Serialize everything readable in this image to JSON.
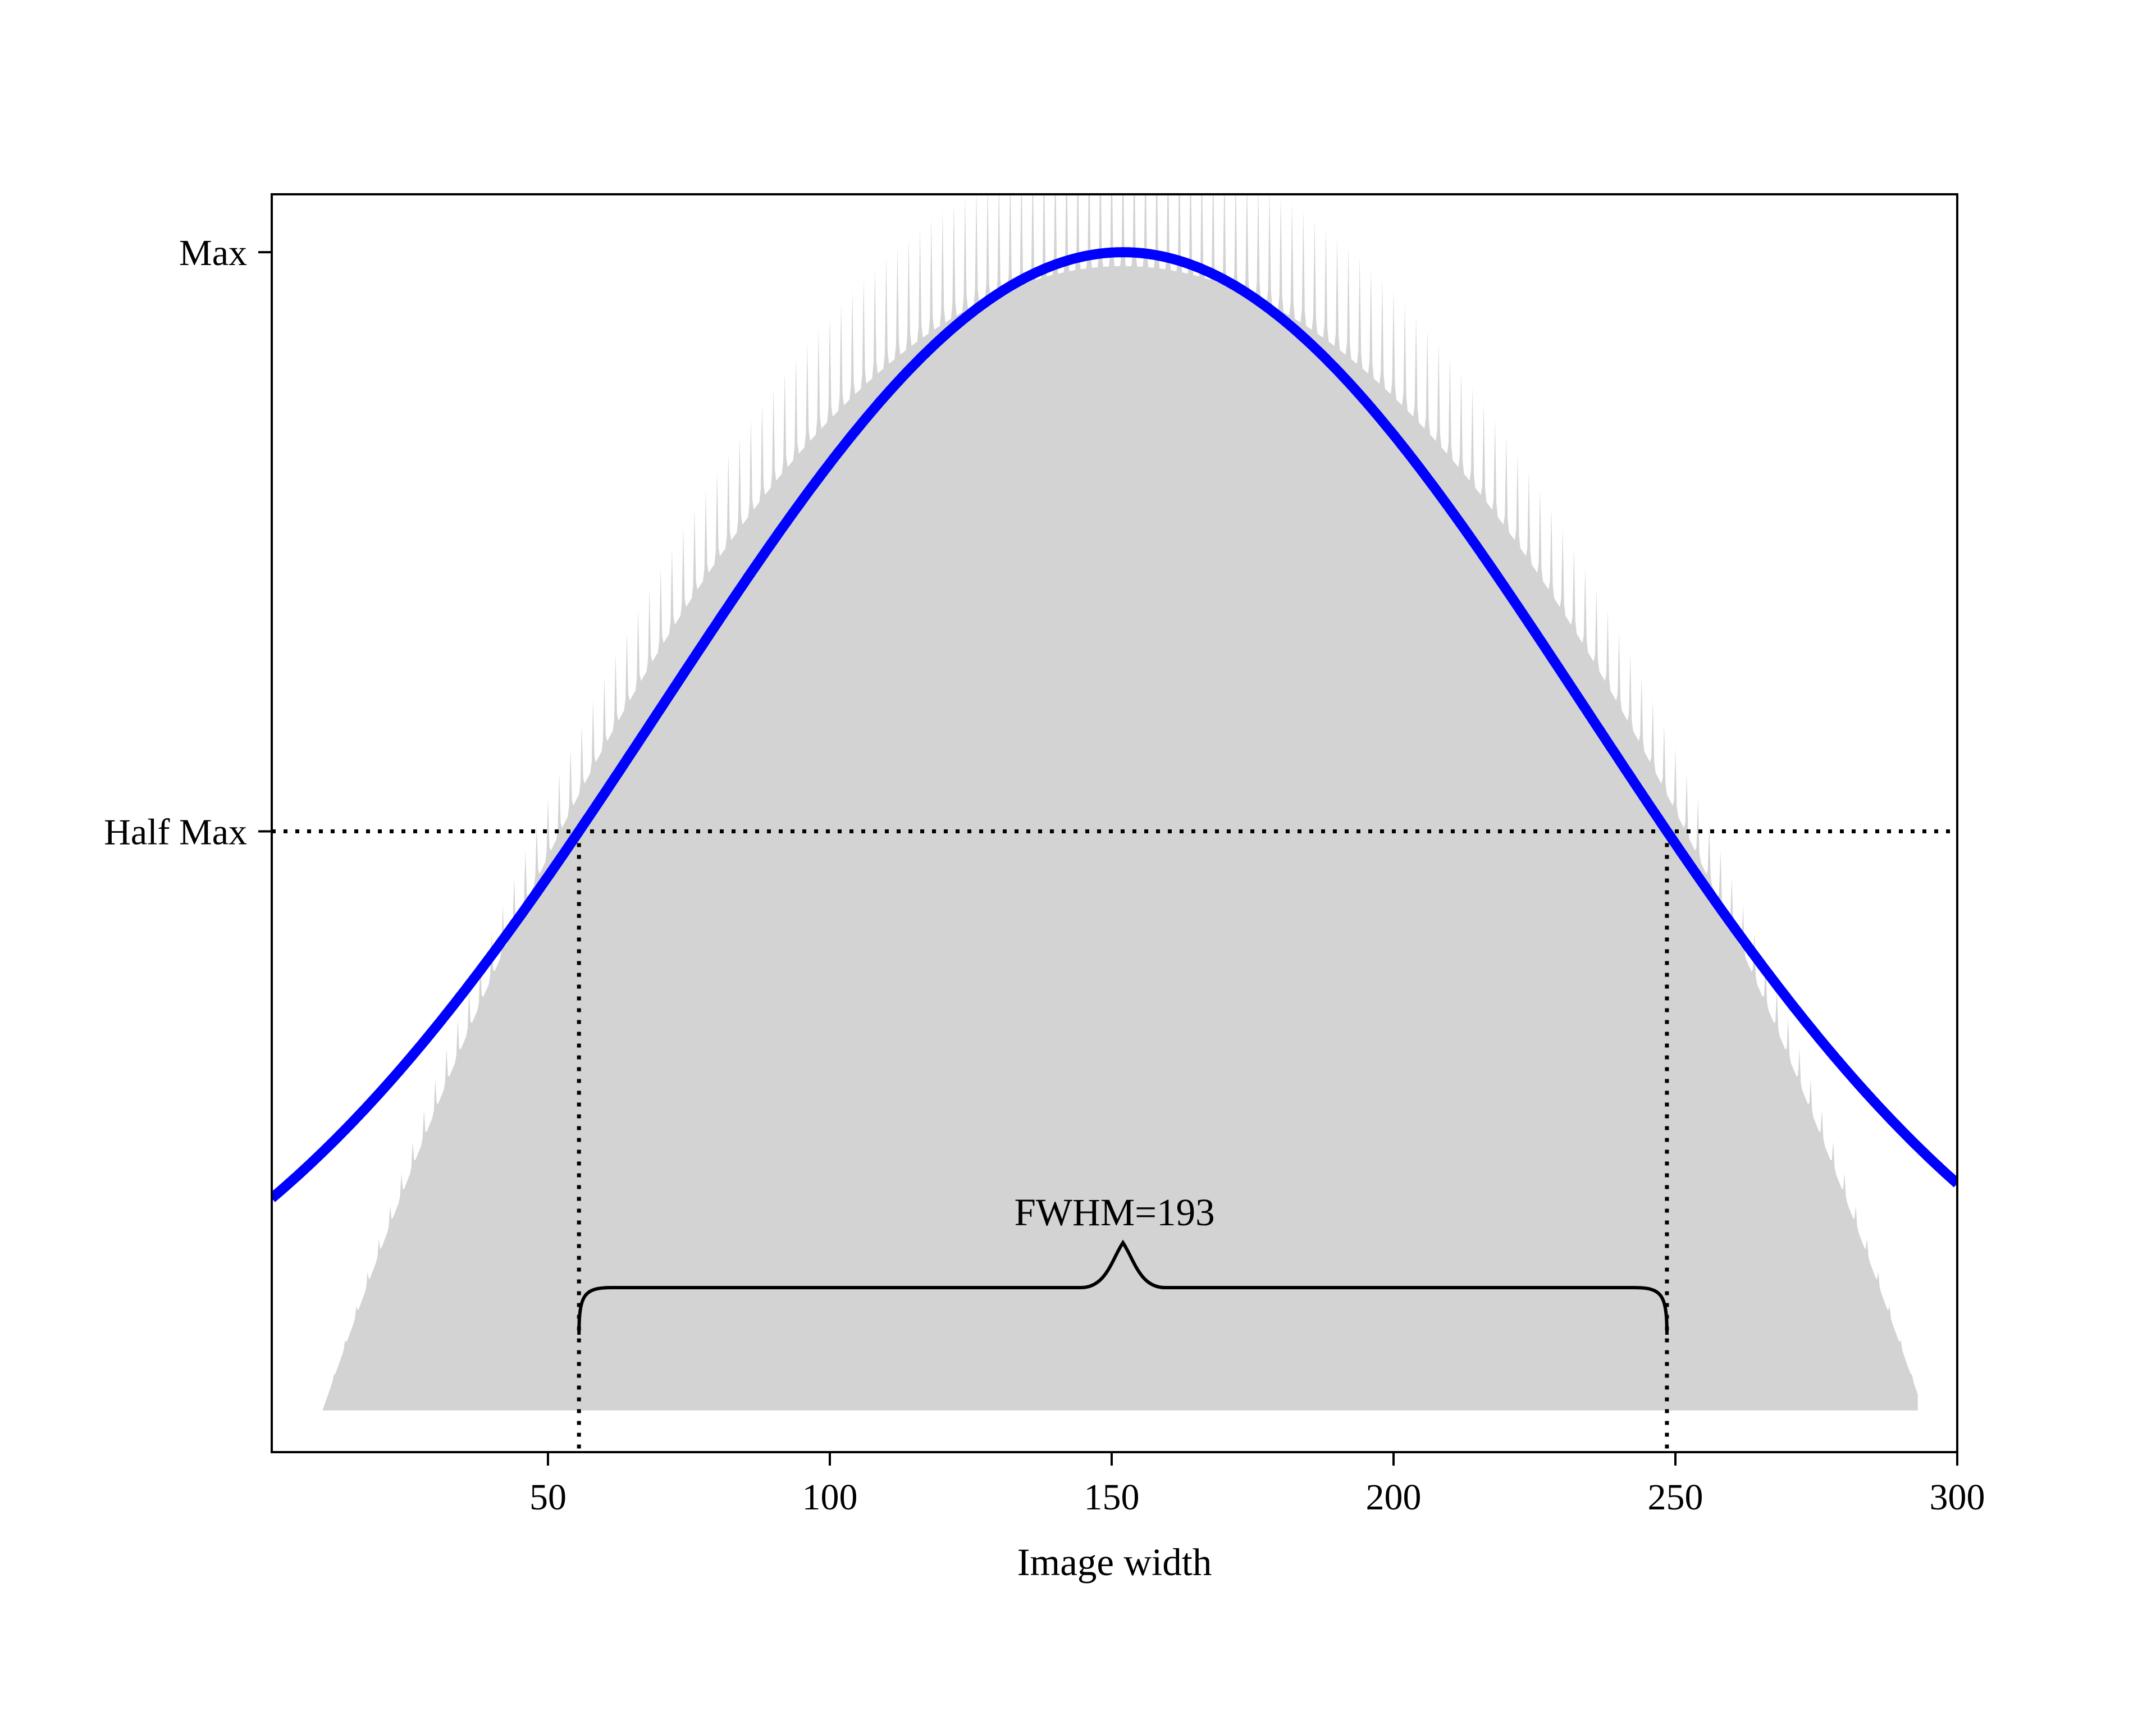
{
  "chart_data": {
    "type": "area",
    "title": "",
    "xlabel": "Image width",
    "ylabel": "",
    "xlim": [
      1,
      300
    ],
    "ylim": [
      -0.036,
      1.05
    ],
    "grid": false,
    "xticks": [
      50,
      100,
      150,
      200,
      250,
      300
    ],
    "yticks": [
      {
        "value": 1.0,
        "label": "Max"
      },
      {
        "value": 0.5,
        "label": "Half Max"
      }
    ],
    "colors": {
      "profile_fill": "#d3d3d3",
      "fit_line": "#0000ff",
      "reference_lines": "#000000"
    },
    "profile": {
      "description_of_values": "intensity profile across image width (normalized, 0 = baseline, 1 = Max)",
      "x_start": 10,
      "x_end": 293,
      "peak_x": 152,
      "peak_value": 1.04,
      "ripple_period": 2,
      "ripple_amplitude": 0.05
    },
    "fit": {
      "peak_x": 152,
      "peak_value": 1.0,
      "fwhm": 193
    },
    "half_max_line": {
      "y": 0.5
    },
    "fwhm_bounds": {
      "left_x": 55.5,
      "right_x": 248.5
    },
    "annotation": {
      "text": "FWHM=193",
      "x": 152
    }
  }
}
